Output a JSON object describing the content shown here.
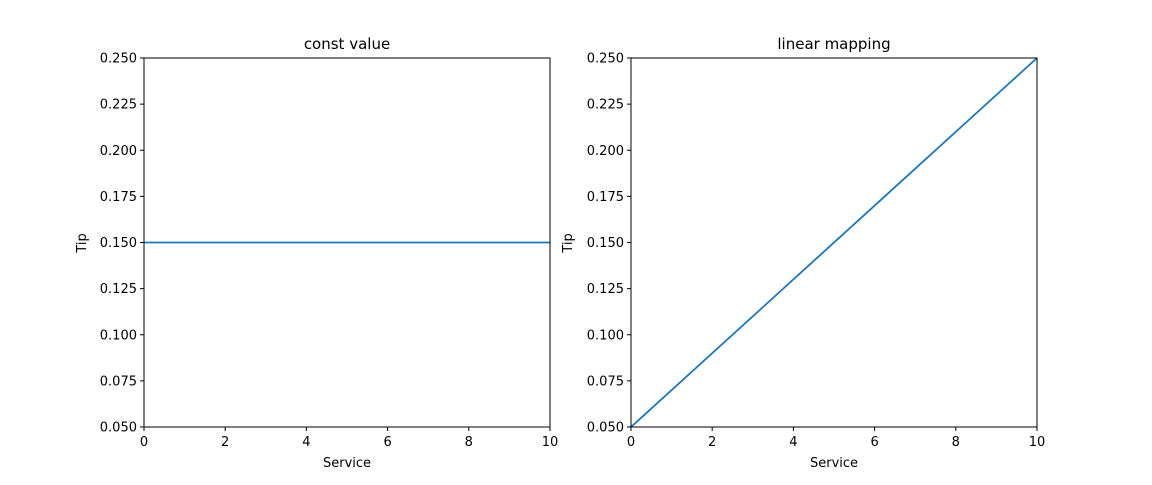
{
  "chart_data": [
    {
      "type": "line",
      "title": "const value",
      "xlabel": "Service",
      "ylabel": "Tip",
      "xlim": [
        0,
        10
      ],
      "ylim": [
        0.05,
        0.25
      ],
      "xticks": [
        "0",
        "2",
        "4",
        "6",
        "8",
        "10"
      ],
      "yticks": [
        "0.050",
        "0.075",
        "0.100",
        "0.125",
        "0.150",
        "0.175",
        "0.200",
        "0.225",
        "0.250"
      ],
      "grid": false,
      "series": [
        {
          "color": "#1f77b4",
          "x": [
            0,
            10
          ],
          "y": [
            0.15,
            0.15
          ]
        }
      ]
    },
    {
      "type": "line",
      "title": "linear mapping",
      "xlabel": "Service",
      "ylabel": "Tip",
      "xlim": [
        0,
        10
      ],
      "ylim": [
        0.05,
        0.25
      ],
      "xticks": [
        "0",
        "2",
        "4",
        "6",
        "8",
        "10"
      ],
      "yticks": [
        "0.050",
        "0.075",
        "0.100",
        "0.125",
        "0.150",
        "0.175",
        "0.200",
        "0.225",
        "0.250"
      ],
      "grid": false,
      "series": [
        {
          "color": "#1f77b4",
          "x": [
            0,
            10
          ],
          "y": [
            0.05,
            0.25
          ]
        }
      ]
    }
  ]
}
